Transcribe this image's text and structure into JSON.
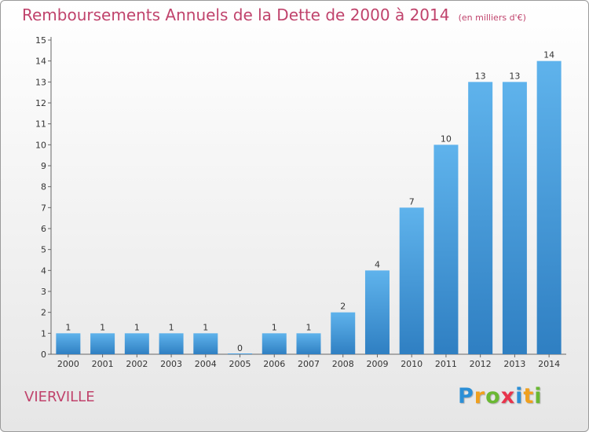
{
  "chart_data": {
    "type": "bar",
    "title": "Remboursements Annuels de la Dette de 2000 à 2014",
    "unit_note": "(en milliers d'€)",
    "categories": [
      "2000",
      "2001",
      "2002",
      "2003",
      "2004",
      "2005",
      "2006",
      "2007",
      "2008",
      "2009",
      "2010",
      "2011",
      "2012",
      "2013",
      "2014"
    ],
    "values": [
      1,
      1,
      1,
      1,
      1,
      0,
      1,
      1,
      2,
      4,
      7,
      10,
      13,
      13,
      14
    ],
    "ylim": [
      0,
      15
    ],
    "yticks": [
      0,
      1,
      2,
      3,
      4,
      5,
      6,
      7,
      8,
      9,
      10,
      11,
      12,
      13,
      14,
      15
    ],
    "grid": false,
    "legend": "none",
    "bar_color": "#4a9fe0"
  },
  "commune": "VIERVILLE",
  "logo": {
    "letters": [
      "P",
      "r",
      "o",
      "x",
      "i",
      "t",
      "i"
    ],
    "colors": [
      "#2c8fd6",
      "#f0a01e",
      "#6ab833",
      "#e8344c",
      "#2c8fd6",
      "#f0a01e",
      "#6ab833"
    ]
  }
}
